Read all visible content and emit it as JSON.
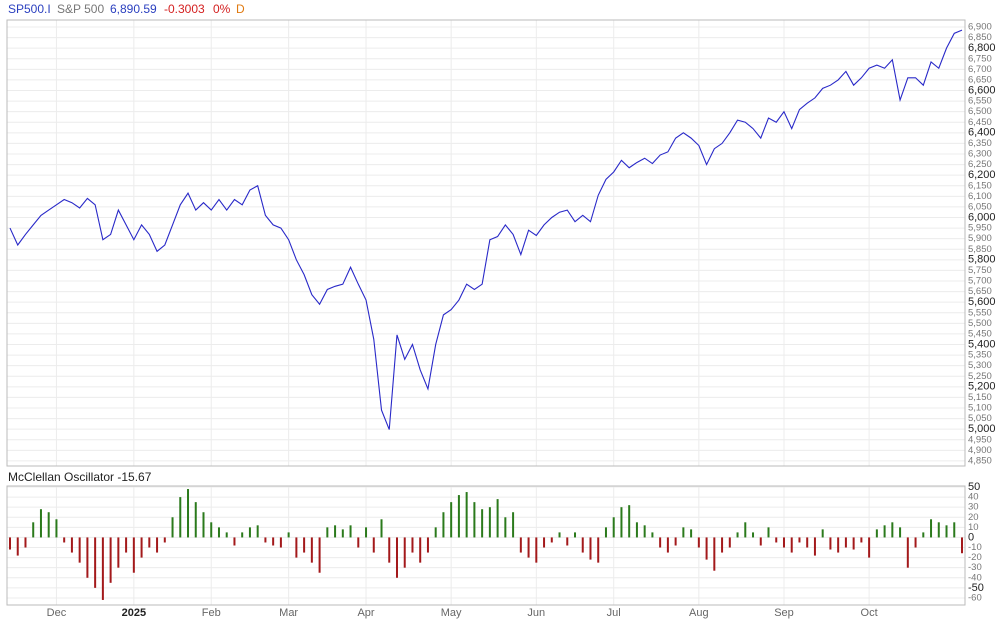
{
  "chart_data": [
    {
      "type": "line",
      "header": {
        "symbol": "SP500.I",
        "name": "S&P 500",
        "last": "6,890.59",
        "change": "-0.3003",
        "percent": "0%",
        "period": "D"
      },
      "header_colors": {
        "symbol": "#2a3fbf",
        "name": "#777777",
        "last": "#2a3fbf",
        "change": "#d42020",
        "percent": "#d42020",
        "period": "#e07a10"
      },
      "categories": [
        null,
        null,
        null,
        null,
        null,
        null,
        "Dec",
        null,
        null,
        null,
        null,
        null,
        null,
        null,
        null,
        null,
        "2025",
        null,
        null,
        null,
        null,
        null,
        null,
        null,
        null,
        null,
        "Feb",
        null,
        null,
        null,
        null,
        null,
        null,
        null,
        null,
        null,
        "Mar",
        null,
        null,
        null,
        null,
        null,
        null,
        null,
        null,
        null,
        "Apr",
        null,
        null,
        null,
        null,
        null,
        null,
        null,
        null,
        null,
        null,
        "May",
        null,
        null,
        null,
        null,
        null,
        null,
        null,
        null,
        null,
        null,
        "Jun",
        null,
        null,
        null,
        null,
        null,
        null,
        null,
        null,
        null,
        "Jul",
        null,
        null,
        null,
        null,
        null,
        null,
        null,
        null,
        null,
        null,
        "Aug",
        null,
        null,
        null,
        null,
        null,
        null,
        null,
        null,
        null,
        null,
        "Sep",
        null,
        null,
        null,
        null,
        null,
        null,
        null,
        null,
        null,
        null,
        "Oct",
        null,
        null,
        null,
        null,
        null,
        null,
        null,
        null,
        null,
        null,
        null,
        null
      ],
      "series": [
        {
          "name": "S&P 500",
          "color": "#2929c8",
          "values": [
            5950,
            5870,
            5920,
            5965,
            6010,
            6035,
            6060,
            6085,
            6070,
            6045,
            6090,
            6060,
            5895,
            5920,
            6035,
            5965,
            5895,
            5965,
            5920,
            5840,
            5870,
            5965,
            6060,
            6115,
            6035,
            6070,
            6035,
            6085,
            6035,
            6085,
            6060,
            6130,
            6150,
            6010,
            5965,
            5950,
            5895,
            5800,
            5730,
            5635,
            5590,
            5660,
            5675,
            5685,
            5765,
            5685,
            5610,
            5425,
            5090,
            4998,
            5445,
            5330,
            5400,
            5280,
            5190,
            5400,
            5540,
            5565,
            5610,
            5685,
            5660,
            5685,
            5895,
            5910,
            5965,
            5920,
            5825,
            5940,
            5915,
            5965,
            6000,
            6025,
            6035,
            5980,
            6010,
            5980,
            6105,
            6180,
            6215,
            6270,
            6235,
            6260,
            6280,
            6255,
            6295,
            6310,
            6375,
            6400,
            6375,
            6340,
            6250,
            6325,
            6350,
            6400,
            6460,
            6450,
            6420,
            6375,
            6470,
            6450,
            6500,
            6420,
            6510,
            6540,
            6565,
            6610,
            6625,
            6650,
            6690,
            6625,
            6660,
            6705,
            6720,
            6705,
            6745,
            6555,
            6660,
            6660,
            6625,
            6735,
            6705,
            6800,
            6870,
            6885
          ]
        }
      ],
      "ylim": [
        4826,
        6933
      ],
      "yticks": [
        {
          "value": 4850,
          "label": "4,850"
        },
        {
          "value": 4900,
          "label": "4,900"
        },
        {
          "value": 4950,
          "label": "4,950"
        },
        {
          "value": 5000,
          "label": "5,000"
        },
        {
          "value": 5050,
          "label": "5,050"
        },
        {
          "value": 5100,
          "label": "5,100"
        },
        {
          "value": 5150,
          "label": "5,150"
        },
        {
          "value": 5200,
          "label": "5,200"
        },
        {
          "value": 5250,
          "label": "5,250"
        },
        {
          "value": 5300,
          "label": "5,300"
        },
        {
          "value": 5350,
          "label": "5,350"
        },
        {
          "value": 5400,
          "label": "5,400"
        },
        {
          "value": 5450,
          "label": "5,450"
        },
        {
          "value": 5500,
          "label": "5,500"
        },
        {
          "value": 5550,
          "label": "5,550"
        },
        {
          "value": 5600,
          "label": "5,600"
        },
        {
          "value": 5650,
          "label": "5,650"
        },
        {
          "value": 5700,
          "label": "5,700"
        },
        {
          "value": 5750,
          "label": "5,750"
        },
        {
          "value": 5800,
          "label": "5,800"
        },
        {
          "value": 5850,
          "label": "5,850"
        },
        {
          "value": 5900,
          "label": "5,900"
        },
        {
          "value": 5950,
          "label": "5,950"
        },
        {
          "value": 6000,
          "label": "6,000"
        },
        {
          "value": 6050,
          "label": "6,050"
        },
        {
          "value": 6100,
          "label": "6,100"
        },
        {
          "value": 6150,
          "label": "6,150"
        },
        {
          "value": 6200,
          "label": "6,200"
        },
        {
          "value": 6250,
          "label": "6,250"
        },
        {
          "value": 6300,
          "label": "6,300"
        },
        {
          "value": 6350,
          "label": "6,350"
        },
        {
          "value": 6400,
          "label": "6,400"
        },
        {
          "value": 6450,
          "label": "6,450"
        },
        {
          "value": 6500,
          "label": "6,500"
        },
        {
          "value": 6550,
          "label": "6,550"
        },
        {
          "value": 6600,
          "label": "6,600"
        },
        {
          "value": 6650,
          "label": "6,650"
        },
        {
          "value": 6700,
          "label": "6,700"
        },
        {
          "value": 6750,
          "label": "6,750"
        },
        {
          "value": 6800,
          "label": "6,800"
        },
        {
          "value": 6850,
          "label": "6,850"
        },
        {
          "value": 6900,
          "label": "6,900"
        }
      ],
      "grid": true
    },
    {
      "type": "bar",
      "title": "McClellan Oscillator -15.67",
      "positive_color": "#2b7a1c",
      "negative_color": "#a3191b",
      "values": [
        -12,
        -18,
        -10,
        15,
        28,
        25,
        18,
        -5,
        -15,
        -25,
        -40,
        -50,
        -62,
        -45,
        -30,
        -15,
        -35,
        -20,
        -10,
        -15,
        -5,
        20,
        40,
        48,
        35,
        25,
        15,
        10,
        5,
        -8,
        5,
        10,
        12,
        -5,
        -8,
        -10,
        5,
        -20,
        -15,
        -25,
        -35,
        10,
        12,
        8,
        12,
        -10,
        10,
        -15,
        18,
        -25,
        -40,
        -30,
        -15,
        -25,
        -15,
        10,
        25,
        35,
        42,
        45,
        35,
        28,
        30,
        38,
        20,
        25,
        -15,
        -20,
        -25,
        -10,
        -5,
        5,
        -8,
        5,
        -15,
        -22,
        -25,
        10,
        20,
        30,
        32,
        15,
        12,
        5,
        -10,
        -15,
        -8,
        10,
        8,
        -10,
        -22,
        -33,
        -15,
        -10,
        5,
        15,
        5,
        -8,
        10,
        -5,
        -10,
        -15,
        -5,
        -10,
        -18,
        8,
        -12,
        -15,
        -10,
        -12,
        -5,
        -20,
        8,
        12,
        15,
        10,
        -30,
        -10,
        5,
        18,
        15,
        12,
        15,
        -15.67
      ],
      "ylim": [
        -67,
        51
      ],
      "yticks": [
        50,
        40,
        30,
        20,
        10,
        0,
        -10,
        -20,
        -30,
        -40,
        -50,
        -60
      ],
      "grid": true
    }
  ]
}
